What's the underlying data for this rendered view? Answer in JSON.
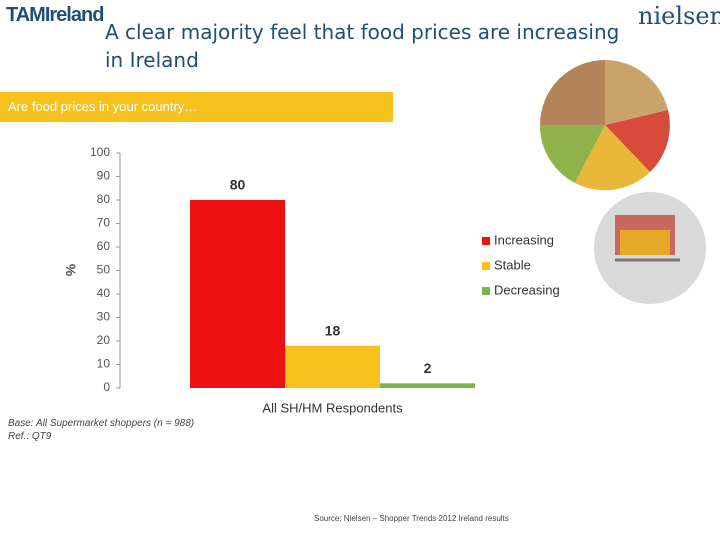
{
  "logos": {
    "left": "TAMIreland",
    "right": "nielsen"
  },
  "footnotes": [
    "Base: All Supermarket shoppers (n = 988)",
    "Ref.: QT9"
  ],
  "source": "Source: Nielsen – Shopper Trends 2012 Ireland results",
  "chart_data": {
    "type": "bar",
    "title": "A clear majority feel that food prices are increasing in Ireland",
    "subtitle": "Are food prices in your country…",
    "y_label": "%",
    "categories": [
      "All SH/HM Respondents"
    ],
    "series": [
      {
        "name": "Increasing",
        "color": "#ee1111",
        "values": [
          80
        ]
      },
      {
        "name": "Stable",
        "color": "#f7c21d",
        "values": [
          18
        ]
      },
      {
        "name": "Decreasing",
        "color": "#7ab648",
        "values": [
          2
        ]
      }
    ],
    "ylim": [
      0,
      100
    ],
    "yticks": [
      0,
      10,
      20,
      30,
      40,
      50,
      60,
      70,
      80,
      90,
      100
    ],
    "legend": "right"
  }
}
